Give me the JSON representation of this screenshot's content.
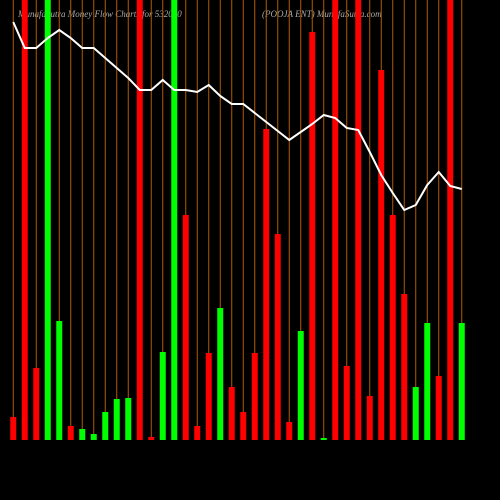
{
  "chart_data": {
    "type": "bar",
    "title": "MunafaSutra  Money Flow  Charts for 532050",
    "subtitle": "(POOJA ENT) MunafaSutra.com",
    "values": [
      23,
      440,
      72,
      440,
      119,
      14,
      11,
      6,
      28,
      41,
      42,
      440,
      3,
      88,
      440,
      225,
      14,
      87,
      132,
      53,
      28,
      87,
      311,
      206,
      18,
      109,
      408,
      2,
      440,
      74,
      440,
      44,
      370,
      225,
      146,
      53,
      117,
      64,
      440,
      117
    ],
    "colors": [
      "#ff0000",
      "#ff0000",
      "#ff0000",
      "#00ff00",
      "#00ff00",
      "#ff0000",
      "#00ff00",
      "#00ff00",
      "#00ff00",
      "#00ff00",
      "#00ff00",
      "#ff0000",
      "#ff0000",
      "#00ff00",
      "#00ff00",
      "#ff0000",
      "#ff0000",
      "#ff0000",
      "#00ff00",
      "#ff0000",
      "#ff0000",
      "#ff0000",
      "#ff0000",
      "#ff0000",
      "#ff0000",
      "#00ff00",
      "#ff0000",
      "#00ff00",
      "#ff0000",
      "#ff0000",
      "#ff0000",
      "#ff0000",
      "#ff0000",
      "#ff0000",
      "#ff0000",
      "#00ff00",
      "#00ff00",
      "#ff0000",
      "#ff0000",
      "#00ff00"
    ],
    "line": {
      "color": "#ffffff",
      "values": [
        418,
        392,
        392,
        402,
        410,
        402,
        392,
        392,
        382,
        372,
        362,
        350,
        350,
        360,
        350,
        350,
        348,
        355,
        344,
        336,
        336,
        327,
        318,
        309,
        300,
        308,
        316,
        325,
        322,
        312,
        310,
        288,
        265,
        247,
        230,
        235,
        255,
        268,
        254,
        251
      ]
    },
    "ylim": [
      0,
      440
    ],
    "grid": true,
    "grid_color": "#b35a00"
  }
}
